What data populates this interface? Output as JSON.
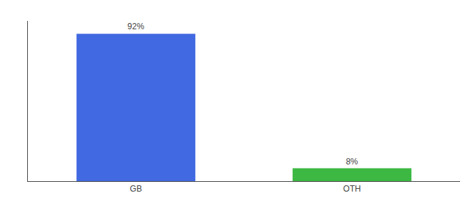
{
  "chart_data": {
    "type": "bar",
    "categories": [
      "GB",
      "OTH"
    ],
    "values": [
      92,
      8
    ],
    "value_labels": [
      "92%",
      "8%"
    ],
    "data_labels": true,
    "colors": [
      "#4169e1",
      "#3cb843"
    ],
    "ylim": [
      0,
      100
    ],
    "grid": false,
    "tick_labels": "x"
  }
}
